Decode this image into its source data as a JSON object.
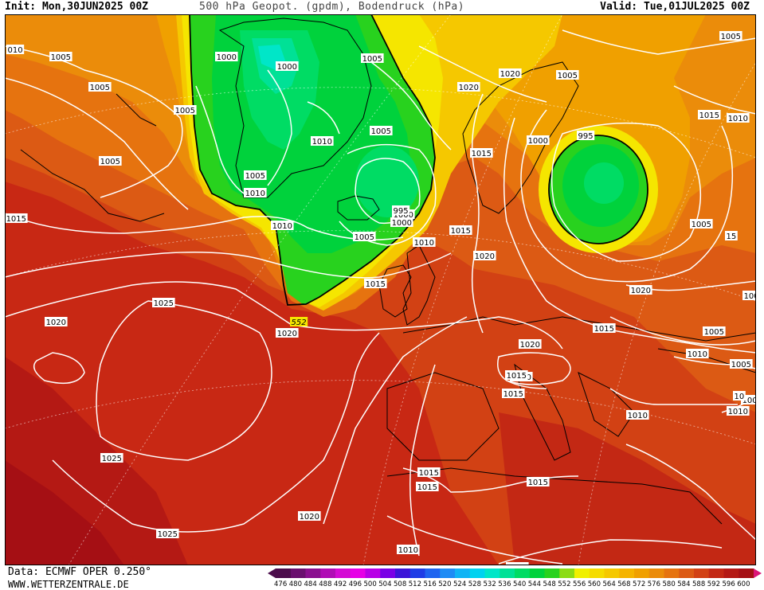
{
  "header": {
    "init": "Init: Mon,30JUN2025 00Z",
    "title": "500 hPa Geopot. (gpdm), Bodendruck (hPa)",
    "valid": "Valid: Tue,01JUL2025 00Z"
  },
  "footer": {
    "data_source": "Data: ECMWF OPER 0.250°",
    "website": "WWW.WETTERZENTRALE.DE"
  },
  "colors": {
    "background": "#ffffff",
    "isobar": "#ffffff",
    "coast": "#000000"
  },
  "scale": {
    "labels": [
      "476",
      "480",
      "484",
      "488",
      "492",
      "496",
      "500",
      "504",
      "508",
      "512",
      "516",
      "520",
      "524",
      "528",
      "532",
      "536",
      "540",
      "544",
      "548",
      "552",
      "556",
      "560",
      "564",
      "568",
      "572",
      "576",
      "580",
      "584",
      "588",
      "592",
      "596",
      "600"
    ],
    "colors": [
      "#4b0c4b",
      "#6a0f6f",
      "#8a0f8f",
      "#b00cb5",
      "#d40ad4",
      "#e600e6",
      "#b800e6",
      "#7a00e6",
      "#3c14d8",
      "#1e3ce6",
      "#1e64f0",
      "#1e8cf5",
      "#10b4f5",
      "#00d2f0",
      "#00e6c8",
      "#00e196",
      "#00dc64",
      "#00d23c",
      "#28d21e",
      "#8cdc14",
      "#f0f000",
      "#f5dc00",
      "#f5c800",
      "#f5b400",
      "#f0a000",
      "#eb8c0a",
      "#e6730f",
      "#dc5a14",
      "#d24114",
      "#c32814",
      "#b41914",
      "#a50f14"
    ]
  },
  "isobar_labels": [
    "010",
    "1005",
    "1005",
    "1000",
    "1000",
    "1005",
    "1005",
    "1005",
    "1020",
    "1005",
    "1020",
    "1005",
    "1005",
    "1010",
    "1000",
    "995",
    "1005",
    "1010",
    "1000",
    "1015",
    "995",
    "1000",
    "1005",
    "1010",
    "1015",
    "1005",
    "15",
    "1010",
    "1015",
    "1020",
    "1010",
    "1015",
    "1020",
    "1000",
    "1025",
    "1020",
    "1020",
    "552",
    "1015",
    "1005",
    "1020",
    "1010",
    "1015",
    "1005",
    "1020",
    "1015",
    "1015",
    "1010",
    "1010",
    "1005",
    "10",
    "1015",
    "1015",
    "1025",
    "1020",
    "1015",
    "1025",
    "1010",
    "1010"
  ]
}
